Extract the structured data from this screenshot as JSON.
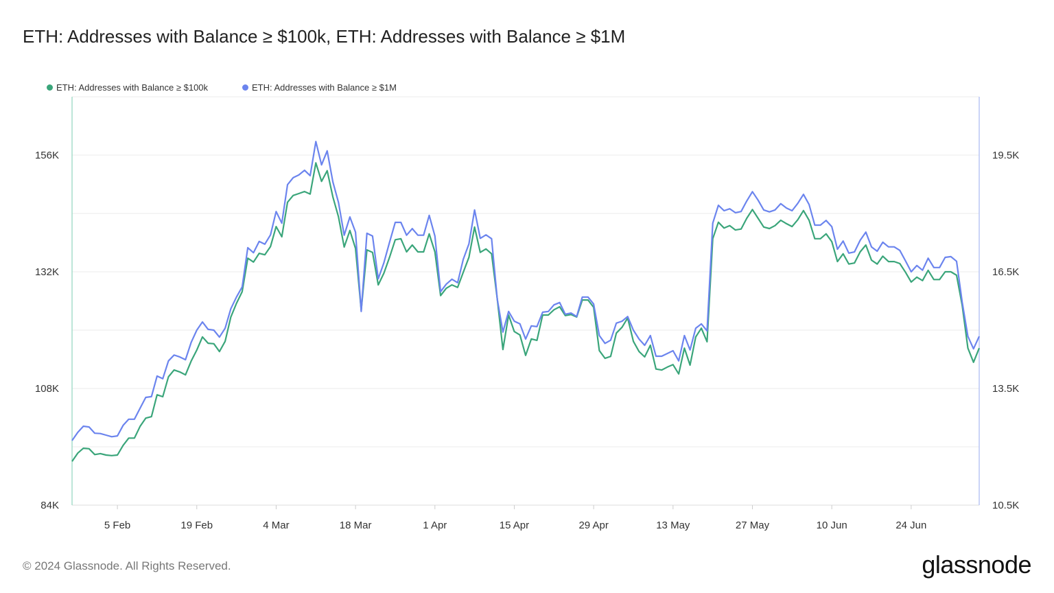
{
  "title": "ETH: Addresses with Balance ≥ $100k, ETH: Addresses with Balance ≥ $1M",
  "footer": "© 2024 Glassnode. All Rights Reserved.",
  "logo_text": "glassnode",
  "chart_data": {
    "type": "line",
    "title": "ETH: Addresses with Balance ≥ $100k, ETH: Addresses with Balance ≥ $1M",
    "x_range": [
      "2024-01-28",
      "2024-07-06"
    ],
    "x_ticks": [
      "5 Feb",
      "19 Feb",
      "4 Mar",
      "18 Mar",
      "1 Apr",
      "15 Apr",
      "29 Apr",
      "13 May",
      "27 May",
      "10 Jun",
      "24 Jun"
    ],
    "x_tick_dates": [
      "2024-02-05",
      "2024-02-19",
      "2024-03-04",
      "2024-03-18",
      "2024-04-01",
      "2024-04-15",
      "2024-04-29",
      "2024-05-13",
      "2024-05-27",
      "2024-06-10",
      "2024-06-24"
    ],
    "y_left": {
      "ylim": [
        84,
        168
      ],
      "ticks": [
        "84K",
        "108K",
        "132K",
        "156K"
      ],
      "tick_values": [
        84,
        108,
        132,
        156
      ],
      "unit": "K"
    },
    "y_right": {
      "ylim": [
        10.5,
        21
      ],
      "ticks": [
        "10.5K",
        "13.5K",
        "16.5K",
        "19.5K"
      ],
      "tick_values": [
        10.5,
        13.5,
        16.5,
        19.5
      ],
      "unit": "K"
    },
    "grid": "horizontal",
    "legend_placement": "top-left",
    "series": [
      {
        "name": "ETH: Addresses with Balance ≥ $100k",
        "axis": "left",
        "color": "#3aa57a",
        "values": [
          93.0,
          94.7,
          95.7,
          95.6,
          94.4,
          94.6,
          94.3,
          94.2,
          94.3,
          96.3,
          97.8,
          97.8,
          100.2,
          101.9,
          102.2,
          106.7,
          106.3,
          110.4,
          111.8,
          111.4,
          110.8,
          113.6,
          115.9,
          118.6,
          117.3,
          117.2,
          115.6,
          117.7,
          122.7,
          125.5,
          127.9,
          134.8,
          134.0,
          135.8,
          135.5,
          137.2,
          141.3,
          139.2,
          146.3,
          147.7,
          148.1,
          148.5,
          148.0,
          154.4,
          150.6,
          152.8,
          147.4,
          143.3,
          137.1,
          140.5,
          136.8,
          124.1,
          136.5,
          136.0,
          129.3,
          131.7,
          135.0,
          138.6,
          138.8,
          136.1,
          137.5,
          136.1,
          136.1,
          139.8,
          136.1,
          127.1,
          128.6,
          129.3,
          128.8,
          131.9,
          135.0,
          141.2,
          136.0,
          136.7,
          135.7,
          126.4,
          116.0,
          123.1,
          119.7,
          119.0,
          114.8,
          118.2,
          117.9,
          123.1,
          123.1,
          124.2,
          124.8,
          123.0,
          123.2,
          122.7,
          126.2,
          126.2,
          124.7,
          115.8,
          114.2,
          114.6,
          119.4,
          120.6,
          122.5,
          117.7,
          115.6,
          114.5,
          116.9,
          112.0,
          111.8,
          112.4,
          112.9,
          111.0,
          116.3,
          112.8,
          118.6,
          120.4,
          117.6,
          138.8,
          142.2,
          141.0,
          141.5,
          140.6,
          140.8,
          143.0,
          144.8,
          143.0,
          141.2,
          140.9,
          141.5,
          142.6,
          141.9,
          141.3,
          142.7,
          144.6,
          142.6,
          138.8,
          138.8,
          139.8,
          138.2,
          134.1,
          135.7,
          133.6,
          133.8,
          136.1,
          137.5,
          134.4,
          133.6,
          135.2,
          134.1,
          134.1,
          133.7,
          131.9,
          129.9,
          130.9,
          130.2,
          132.3,
          130.4,
          130.4,
          132.0,
          132.0,
          131.3,
          125.1,
          116.3,
          113.4,
          116.3
        ]
      },
      {
        "name": "ETH: Addresses with Balance ≥ $1M",
        "axis": "right",
        "color": "#6b84ee",
        "values": [
          12.16,
          12.37,
          12.53,
          12.51,
          12.35,
          12.34,
          12.3,
          12.26,
          12.28,
          12.55,
          12.71,
          12.71,
          12.99,
          13.27,
          13.29,
          13.82,
          13.75,
          14.21,
          14.36,
          14.31,
          14.24,
          14.68,
          15.0,
          15.21,
          15.02,
          15.0,
          14.82,
          15.05,
          15.55,
          15.85,
          16.11,
          17.12,
          16.99,
          17.28,
          17.21,
          17.45,
          18.05,
          17.75,
          18.74,
          18.92,
          18.99,
          19.11,
          18.97,
          19.85,
          19.25,
          19.61,
          18.81,
          18.28,
          17.44,
          17.91,
          17.52,
          15.48,
          17.49,
          17.42,
          16.32,
          16.73,
          17.26,
          17.77,
          17.77,
          17.44,
          17.61,
          17.44,
          17.44,
          17.95,
          17.42,
          15.99,
          16.18,
          16.31,
          16.22,
          16.82,
          17.22,
          18.09,
          17.36,
          17.45,
          17.35,
          15.79,
          14.95,
          15.48,
          15.23,
          15.16,
          14.77,
          15.11,
          15.09,
          15.46,
          15.48,
          15.65,
          15.71,
          15.41,
          15.44,
          15.35,
          15.85,
          15.85,
          15.67,
          14.86,
          14.66,
          14.74,
          15.18,
          15.23,
          15.35,
          15.0,
          14.77,
          14.61,
          14.86,
          14.33,
          14.33,
          14.4,
          14.47,
          14.21,
          14.86,
          14.49,
          15.05,
          15.16,
          14.98,
          17.75,
          18.21,
          18.07,
          18.12,
          18.02,
          18.05,
          18.32,
          18.56,
          18.34,
          18.09,
          18.04,
          18.09,
          18.25,
          18.14,
          18.07,
          18.26,
          18.49,
          18.23,
          17.7,
          17.7,
          17.82,
          17.66,
          17.08,
          17.29,
          16.98,
          17.01,
          17.31,
          17.52,
          17.14,
          17.03,
          17.26,
          17.14,
          17.14,
          17.05,
          16.78,
          16.5,
          16.66,
          16.54,
          16.85,
          16.61,
          16.61,
          16.87,
          16.89,
          16.77,
          15.72,
          14.84,
          14.52,
          14.84
        ]
      }
    ]
  }
}
